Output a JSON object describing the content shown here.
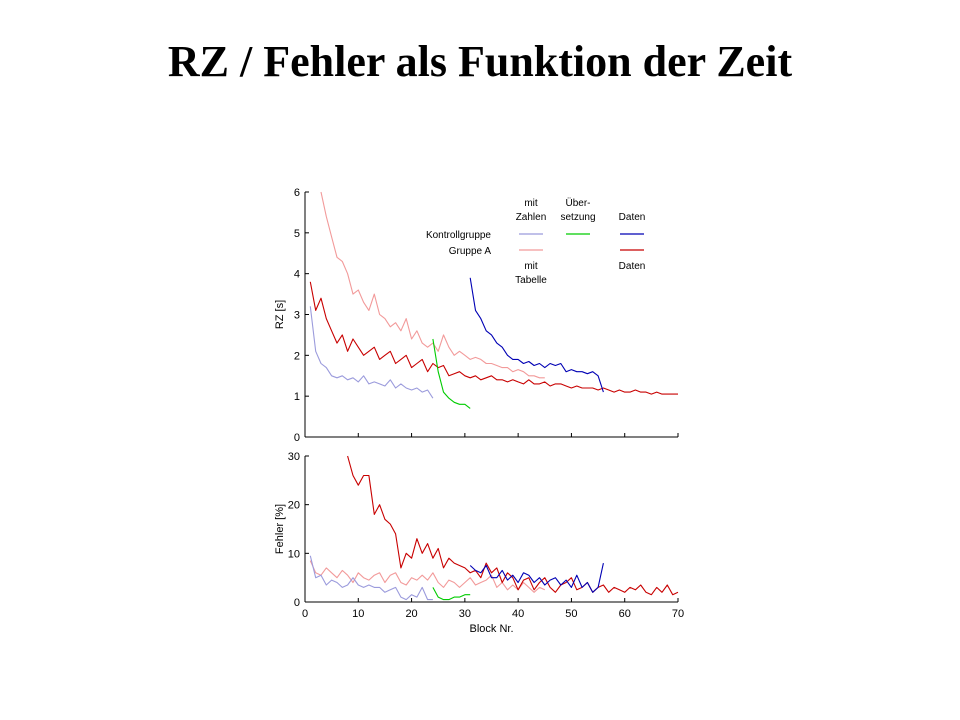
{
  "slide": {
    "title": "RZ / Fehler als Funktion der Zeit"
  },
  "legend": {
    "col_headers": [
      [
        "mit",
        "Zahlen"
      ],
      [
        "Über-",
        "setzung"
      ],
      [
        "Daten"
      ]
    ],
    "row_labels": [
      "Kontrollgruppe",
      "Gruppe A"
    ],
    "col_footers": [
      [
        "mit",
        "Tabelle"
      ],
      [],
      [
        "Daten"
      ]
    ]
  },
  "colors": {
    "kontroll_zahlen": "#9b9bdc",
    "uebersetzung": "#00cc00",
    "kontroll_daten": "#0000b4",
    "gruppeA_tabelle": "#f29a9a",
    "gruppeA_daten": "#c80000"
  },
  "chart_data": [
    {
      "type": "line",
      "ylabel": "RZ [s]",
      "xlabel": "",
      "xlim": [
        0,
        70
      ],
      "ylim": [
        0,
        6
      ],
      "xticks": [
        0,
        10,
        20,
        30,
        40,
        50,
        60,
        70
      ],
      "yticks": [
        0,
        1,
        2,
        3,
        4,
        5,
        6
      ],
      "show_xtick_labels": false,
      "series": [
        {
          "key": "gruppeA_tabelle",
          "x": [
            3,
            4,
            5,
            6,
            7,
            8,
            9,
            10,
            11,
            12,
            13,
            14,
            15,
            16,
            17,
            18,
            19,
            20,
            21,
            22,
            23,
            24,
            25,
            26,
            27,
            28,
            29,
            30,
            31,
            32,
            33,
            34,
            35,
            36,
            37,
            38,
            39,
            40,
            41,
            42,
            43,
            44,
            45
          ],
          "y": [
            6.0,
            5.4,
            4.9,
            4.4,
            4.3,
            4.0,
            3.5,
            3.6,
            3.3,
            3.1,
            3.5,
            3.0,
            2.9,
            2.7,
            2.8,
            2.6,
            2.9,
            2.4,
            2.6,
            2.3,
            2.2,
            2.3,
            2.1,
            2.5,
            2.2,
            2.0,
            2.1,
            2.0,
            1.9,
            1.95,
            1.9,
            1.8,
            1.8,
            1.75,
            1.7,
            1.7,
            1.6,
            1.65,
            1.6,
            1.5,
            1.5,
            1.45,
            1.45
          ]
        },
        {
          "key": "gruppeA_daten",
          "x": [
            1,
            2,
            3,
            4,
            5,
            6,
            7,
            8,
            9,
            10,
            11,
            12,
            13,
            14,
            15,
            16,
            17,
            18,
            19,
            20,
            21,
            22,
            23,
            24,
            25,
            26,
            27,
            28,
            29,
            30,
            31,
            32,
            33,
            34,
            35,
            36,
            37,
            38,
            39,
            40,
            41,
            42,
            43,
            44,
            45,
            46,
            47,
            48,
            49,
            50,
            51,
            52,
            53,
            54,
            55,
            56,
            57,
            58,
            59,
            60,
            61,
            62,
            63,
            64,
            65,
            66,
            67,
            68,
            69,
            70
          ],
          "y": [
            3.8,
            3.1,
            3.4,
            2.9,
            2.6,
            2.3,
            2.5,
            2.1,
            2.4,
            2.2,
            2.0,
            2.1,
            2.2,
            1.9,
            2.0,
            2.1,
            1.8,
            1.9,
            2.0,
            1.7,
            1.8,
            1.9,
            1.6,
            1.8,
            1.7,
            1.75,
            1.5,
            1.55,
            1.6,
            1.5,
            1.45,
            1.5,
            1.4,
            1.45,
            1.5,
            1.4,
            1.4,
            1.35,
            1.4,
            1.35,
            1.3,
            1.4,
            1.3,
            1.3,
            1.35,
            1.25,
            1.3,
            1.3,
            1.25,
            1.2,
            1.25,
            1.2,
            1.2,
            1.2,
            1.15,
            1.2,
            1.15,
            1.1,
            1.15,
            1.1,
            1.1,
            1.15,
            1.1,
            1.1,
            1.05,
            1.1,
            1.05,
            1.05,
            1.05,
            1.05
          ]
        },
        {
          "key": "kontroll_zahlen",
          "x": [
            1,
            2,
            3,
            4,
            5,
            6,
            7,
            8,
            9,
            10,
            11,
            12,
            13,
            14,
            15,
            16,
            17,
            18,
            19,
            20,
            21,
            22,
            23,
            24
          ],
          "y": [
            3.2,
            2.1,
            1.8,
            1.7,
            1.5,
            1.45,
            1.5,
            1.4,
            1.45,
            1.35,
            1.5,
            1.3,
            1.35,
            1.3,
            1.25,
            1.4,
            1.2,
            1.3,
            1.2,
            1.15,
            1.2,
            1.1,
            1.15,
            0.95
          ]
        },
        {
          "key": "uebersetzung",
          "x": [
            24,
            25,
            26,
            27,
            28,
            29,
            30,
            31
          ],
          "y": [
            2.4,
            1.6,
            1.1,
            0.95,
            0.85,
            0.8,
            0.8,
            0.7
          ]
        },
        {
          "key": "kontroll_daten",
          "x": [
            31,
            32,
            33,
            34,
            35,
            36,
            37,
            38,
            39,
            40,
            41,
            42,
            43,
            44,
            45,
            46,
            47,
            48,
            49,
            50,
            51,
            52,
            53,
            54,
            55,
            56
          ],
          "y": [
            3.9,
            3.1,
            2.9,
            2.6,
            2.5,
            2.3,
            2.2,
            2.0,
            1.9,
            1.9,
            1.8,
            1.85,
            1.75,
            1.8,
            1.7,
            1.8,
            1.75,
            1.8,
            1.6,
            1.65,
            1.6,
            1.6,
            1.55,
            1.6,
            1.5,
            1.1
          ]
        }
      ]
    },
    {
      "type": "line",
      "ylabel": "Fehler [%]",
      "xlabel": "Block Nr.",
      "xlim": [
        0,
        70
      ],
      "ylim": [
        0,
        30
      ],
      "xticks": [
        0,
        10,
        20,
        30,
        40,
        50,
        60,
        70
      ],
      "yticks": [
        0,
        10,
        20,
        30
      ],
      "show_xtick_labels": true,
      "series": [
        {
          "key": "gruppeA_tabelle",
          "x": [
            1,
            2,
            3,
            4,
            5,
            6,
            7,
            8,
            9,
            10,
            11,
            12,
            13,
            14,
            15,
            16,
            17,
            18,
            19,
            20,
            21,
            22,
            23,
            24,
            25,
            26,
            27,
            28,
            29,
            30,
            31,
            32,
            33,
            34,
            35,
            36,
            37,
            38,
            39,
            40,
            41,
            42,
            43,
            44,
            45
          ],
          "y": [
            8.5,
            6.0,
            5.5,
            7.0,
            6.0,
            5.0,
            6.5,
            5.5,
            4.0,
            6.0,
            5.0,
            4.5,
            5.5,
            6.0,
            4.0,
            5.5,
            6.0,
            4.0,
            3.5,
            5.0,
            4.5,
            5.5,
            4.5,
            6.0,
            4.0,
            3.0,
            4.5,
            4.0,
            3.0,
            4.0,
            5.0,
            3.5,
            4.0,
            4.5,
            5.5,
            3.0,
            4.0,
            2.5,
            3.5,
            2.5,
            4.0,
            3.0,
            2.0,
            3.0,
            2.5
          ]
        },
        {
          "key": "gruppeA_daten",
          "x": [
            8,
            9,
            10,
            11,
            12,
            13,
            14,
            15,
            16,
            17,
            18,
            19,
            20,
            21,
            22,
            23,
            24,
            25,
            26,
            27,
            28,
            29,
            30,
            31,
            32,
            33,
            34,
            35,
            36,
            37,
            38,
            39,
            40,
            41,
            42,
            43,
            44,
            45,
            46,
            47,
            48,
            49,
            50,
            51,
            52,
            53,
            54,
            55,
            56,
            57,
            58,
            59,
            60,
            61,
            62,
            63,
            64,
            65,
            66,
            67,
            68,
            69,
            70
          ],
          "y": [
            30.0,
            26.0,
            24.0,
            26.0,
            26.0,
            18.0,
            20.0,
            17.0,
            16.0,
            14.0,
            7.0,
            10.0,
            9.0,
            13.0,
            10.0,
            12.0,
            9.0,
            11.0,
            7.0,
            9.0,
            8.0,
            7.5,
            7.0,
            6.0,
            6.5,
            5.0,
            8.0,
            6.0,
            7.0,
            4.0,
            6.0,
            5.0,
            2.5,
            4.5,
            5.0,
            2.5,
            4.0,
            5.0,
            3.0,
            2.0,
            3.5,
            4.0,
            5.0,
            2.5,
            3.0,
            4.0,
            2.0,
            3.0,
            3.5,
            2.0,
            3.0,
            2.5,
            2.0,
            3.0,
            2.5,
            3.5,
            2.0,
            1.5,
            3.0,
            2.0,
            3.5,
            1.5,
            2.0
          ]
        },
        {
          "key": "kontroll_zahlen",
          "x": [
            1,
            2,
            3,
            4,
            5,
            6,
            7,
            8,
            9,
            10,
            11,
            12,
            13,
            14,
            15,
            16,
            17,
            18,
            19,
            20,
            21,
            22,
            23,
            24
          ],
          "y": [
            9.5,
            5.0,
            5.5,
            3.5,
            4.5,
            4.0,
            3.0,
            3.5,
            5.0,
            3.5,
            3.0,
            3.5,
            3.0,
            3.0,
            2.0,
            2.5,
            3.0,
            1.0,
            0.5,
            1.5,
            1.0,
            3.0,
            0.5,
            0.5
          ]
        },
        {
          "key": "uebersetzung",
          "x": [
            24,
            25,
            26,
            27,
            28,
            29,
            30,
            31
          ],
          "y": [
            3.0,
            1.0,
            0.5,
            0.5,
            1.0,
            1.0,
            1.5,
            1.5
          ]
        },
        {
          "key": "kontroll_daten",
          "x": [
            31,
            32,
            33,
            34,
            35,
            36,
            37,
            38,
            39,
            40,
            41,
            42,
            43,
            44,
            45,
            46,
            47,
            48,
            49,
            50,
            51,
            52,
            53,
            54,
            55,
            56
          ],
          "y": [
            7.5,
            6.5,
            6.0,
            7.5,
            5.0,
            5.0,
            6.5,
            4.5,
            5.5,
            4.0,
            6.0,
            5.5,
            4.0,
            5.0,
            3.5,
            4.5,
            5.0,
            3.5,
            4.5,
            3.0,
            5.5,
            3.0,
            4.0,
            2.0,
            3.0,
            8.0
          ]
        }
      ]
    }
  ]
}
